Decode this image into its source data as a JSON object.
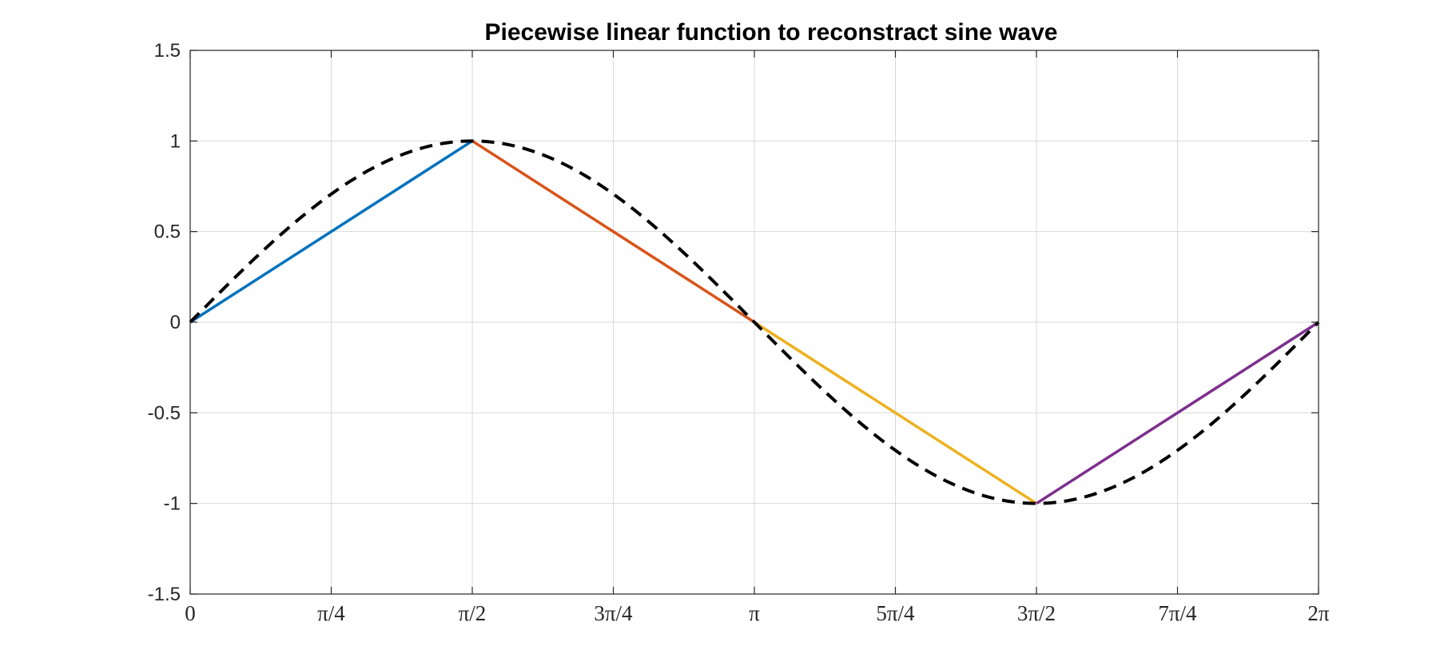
{
  "chart_data": {
    "type": "line",
    "title": "Piecewise linear function to reconstract sine wave",
    "xlabel": "",
    "ylabel": "",
    "xlim": [
      0,
      6.283185307
    ],
    "ylim": [
      -1.5,
      1.5
    ],
    "grid": true,
    "x_ticks": [
      {
        "value": 0,
        "label": "0"
      },
      {
        "value": 0.785398163,
        "label": "π/4"
      },
      {
        "value": 1.570796327,
        "label": "π/2"
      },
      {
        "value": 2.35619449,
        "label": "3π/4"
      },
      {
        "value": 3.141592654,
        "label": "π"
      },
      {
        "value": 3.926990817,
        "label": "5π/4"
      },
      {
        "value": 4.71238898,
        "label": "3π/2"
      },
      {
        "value": 5.497787144,
        "label": "7π/4"
      },
      {
        "value": 6.283185307,
        "label": "2π"
      }
    ],
    "y_ticks": [
      {
        "value": 1.5,
        "label": "1.5"
      },
      {
        "value": 1,
        "label": "1"
      },
      {
        "value": 0.5,
        "label": "0.5"
      },
      {
        "value": 0,
        "label": "0"
      },
      {
        "value": -0.5,
        "label": "-0.5"
      },
      {
        "value": -1,
        "label": "-1"
      },
      {
        "value": -1.5,
        "label": "-1.5"
      }
    ],
    "series": [
      {
        "style": "solid",
        "color": "#0072BD",
        "x": [
          0,
          1.570796327
        ],
        "y": [
          0,
          1
        ]
      },
      {
        "style": "solid",
        "color": "#D95319",
        "x": [
          1.570796327,
          3.141592654
        ],
        "y": [
          1,
          0
        ]
      },
      {
        "style": "solid",
        "color": "#EDB120",
        "x": [
          3.141592654,
          4.71238898
        ],
        "y": [
          0,
          -1
        ]
      },
      {
        "style": "solid",
        "color": "#7E2F8E",
        "x": [
          4.71238898,
          6.283185307
        ],
        "y": [
          -1,
          0
        ]
      },
      {
        "style": "dashed",
        "color": "#000000",
        "function": "sin(x)",
        "x_range": [
          0,
          6.283185307
        ]
      }
    ]
  }
}
